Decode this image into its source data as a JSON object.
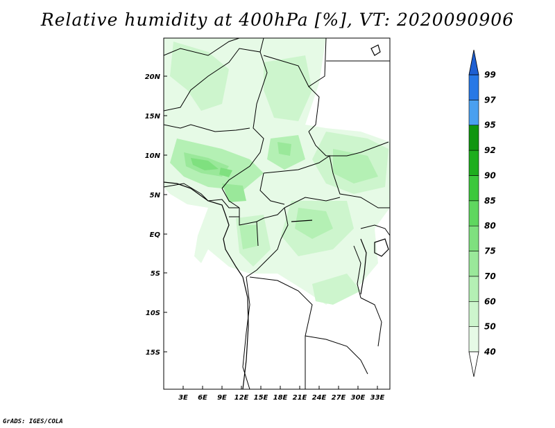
{
  "title": "Relative humidity at 400hPa [%], VT: 2020090906",
  "credit": "GrADS: IGES/COLA",
  "map": {
    "lat_labels": [
      "20N",
      "15N",
      "10N",
      "5N",
      "EQ",
      "5S",
      "10S",
      "15S"
    ],
    "lon_labels": [
      "3E",
      "6E",
      "9E",
      "12E",
      "15E",
      "18E",
      "21E",
      "24E",
      "27E",
      "30E",
      "33E"
    ]
  },
  "colorbar": {
    "levels": [
      "40",
      "50",
      "60",
      "70",
      "75",
      "80",
      "85",
      "90",
      "92",
      "95",
      "97",
      "99"
    ],
    "colors": [
      "#ffffff",
      "#e6fae6",
      "#cdf5cd",
      "#b4f0b4",
      "#9ae89a",
      "#7fe07f",
      "#5fd75f",
      "#3cc83c",
      "#1eae1e",
      "#109610",
      "#4aa0f0",
      "#2878e6",
      "#1e5fd2"
    ]
  }
}
